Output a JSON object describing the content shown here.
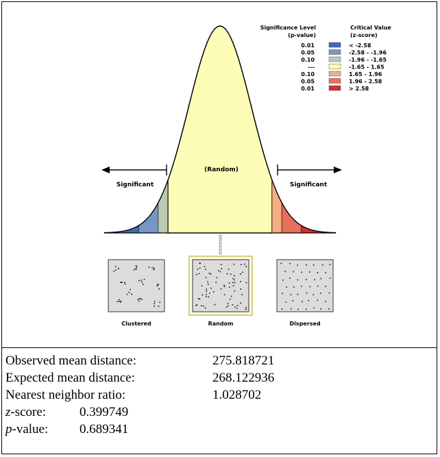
{
  "diagram": {
    "center_label": "(Random)",
    "left_label": "Significant",
    "right_label": "Significant",
    "legend": {
      "header_p": [
        "Significance Level",
        "(p-value)"
      ],
      "header_z": [
        "Critical Value",
        "(z-score)"
      ],
      "rows": [
        {
          "p": "0.01",
          "z": "< -2.58",
          "color": "#3F6CB0"
        },
        {
          "p": "0.05",
          "z": "-2.58 - -1.96",
          "color": "#7896C4"
        },
        {
          "p": "0.10",
          "z": "-1.96 - -1.65",
          "color": "#BBC9B0"
        },
        {
          "p": "---",
          "z": "-1.65 - 1.65",
          "color": "#FDFDB8"
        },
        {
          "p": "0.10",
          "z": "1.65 - 1.96",
          "color": "#F4AE80"
        },
        {
          "p": "0.05",
          "z": "1.96 - 2.58",
          "color": "#E8705A"
        },
        {
          "p": "0.01",
          "z": "> 2.58",
          "color": "#D42F2F"
        }
      ]
    },
    "patterns": [
      {
        "label": "Clustered",
        "kind": "clustered"
      },
      {
        "label": "Random",
        "kind": "random"
      },
      {
        "label": "Dispersed",
        "kind": "dispersed"
      }
    ],
    "highlight_color": "#D4D079"
  },
  "stats": [
    {
      "label": "Observed mean distance:",
      "value": "275.818721"
    },
    {
      "label": "Expected mean distance:",
      "value": "268.122936"
    },
    {
      "label": "Nearest neighbor ratio:",
      "value": "1.028702"
    },
    {
      "label_italic": "z",
      "label_rest": "-score:",
      "value": "0.399749"
    },
    {
      "label_italic": "p",
      "label_rest": "-value:",
      "value": "0.689341"
    }
  ]
}
